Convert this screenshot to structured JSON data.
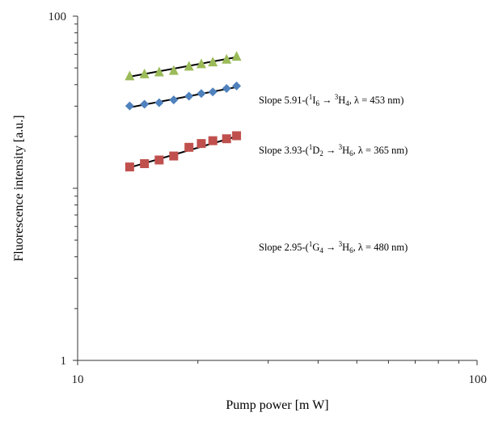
{
  "chart_data": {
    "type": "scatter",
    "xlabel": "Pump power [m W]",
    "ylabel": "Fluorescence intensity [a.u.]",
    "xscale": "log",
    "yscale": "log",
    "xlim": [
      10,
      100
    ],
    "ylim": [
      1,
      100
    ],
    "x_ticks": [
      "10",
      "100"
    ],
    "y_ticks": [
      "1",
      "100"
    ],
    "grid": false,
    "series": [
      {
        "color": "#9bbb59",
        "marker": "triangle",
        "x": [
          13.5,
          14.7,
          16.0,
          17.4,
          19.0,
          20.4,
          21.8,
          23.6,
          25.0
        ],
        "y": [
          45.0,
          46.2,
          47.4,
          48.4,
          51.2,
          52.9,
          54.2,
          56.2,
          58.5
        ],
        "fit_x": [
          13.5,
          25.0
        ],
        "fit_y": [
          44.5,
          57.8
        ],
        "annotation": {
          "prefix": "Slope 5.91-(",
          "sup1": "1",
          "state1": "I",
          "sub1": "6",
          "arrow": " → ",
          "sup2": "3",
          "state2": "H",
          "sub2": "4",
          "suffix": ", λ = 453 nm)"
        }
      },
      {
        "color": "#4f81bd",
        "marker": "diamond",
        "x": [
          13.5,
          14.7,
          16.0,
          17.4,
          19.0,
          20.4,
          21.8,
          23.6,
          25.0
        ],
        "y": [
          30.1,
          30.8,
          31.4,
          32.6,
          34.3,
          35.5,
          36.3,
          38.0,
          39.3
        ],
        "fit_x": [
          13.5,
          25.0
        ],
        "fit_y": [
          29.5,
          38.7
        ],
        "annotation": {
          "prefix": "Slope 3.93-(",
          "sup1": "1",
          "state1": "D",
          "sub1": "2",
          "arrow": " → ",
          "sup2": "3",
          "state2": "H",
          "sub2": "6",
          "suffix": ", λ = 365 nm)"
        }
      },
      {
        "color": "#c0504d",
        "marker": "square",
        "x": [
          13.5,
          14.7,
          16.0,
          17.4,
          19.0,
          20.4,
          21.8,
          23.6,
          25.0
        ],
        "y": [
          13.3,
          13.9,
          14.6,
          15.4,
          17.3,
          18.2,
          18.9,
          19.4,
          20.2
        ],
        "fit_x": [
          13.5,
          25.0
        ],
        "fit_y": [
          13.2,
          20.0
        ],
        "annotation": {
          "prefix": "Slope 2.95-(",
          "sup1": "1",
          "state1": "G",
          "sub1": "4",
          "arrow": " → ",
          "sup2": "3",
          "state2": "H",
          "sub2": "6",
          "suffix": ", λ = 480 nm)"
        }
      }
    ]
  }
}
